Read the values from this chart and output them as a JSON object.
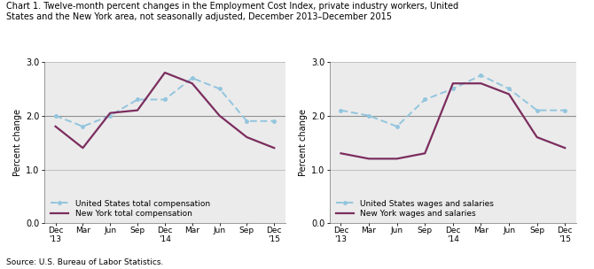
{
  "title_line1": "Chart 1. Twelve-month percent changes in the Employment Cost Index, private industry workers, United",
  "title_line2": "States and the New York area, not seasonally adjusted, December 2013–December 2015",
  "source": "Source: U.S. Bureau of Labor Statistics.",
  "x_labels": [
    "Dec\n'13",
    "Mar",
    "Jun",
    "Sep",
    "Dec\n'14",
    "Mar",
    "Jun",
    "Sep",
    "Dec\n'15"
  ],
  "chart1": {
    "us_total": [
      2.0,
      1.8,
      2.0,
      2.3,
      2.3,
      2.7,
      2.5,
      1.9,
      1.9
    ],
    "ny_total": [
      1.8,
      1.4,
      2.05,
      2.1,
      2.8,
      2.6,
      2.0,
      1.6,
      1.4
    ],
    "ylabel": "Percent change",
    "legend1": "United States total compensation",
    "legend2": "New York total compensation"
  },
  "chart2": {
    "us_wages": [
      2.1,
      2.0,
      1.8,
      2.3,
      2.5,
      2.75,
      2.5,
      2.1,
      2.1
    ],
    "ny_wages": [
      1.3,
      1.2,
      1.2,
      1.3,
      2.6,
      2.6,
      2.4,
      1.6,
      1.4
    ],
    "ylabel": "Percent change",
    "legend1": "United States wages and salaries",
    "legend2": "New York wages and salaries"
  },
  "ylim": [
    0.0,
    3.0
  ],
  "yticks": [
    0.0,
    1.0,
    2.0,
    3.0
  ],
  "ref_line": 2.0,
  "color_us": "#92C5DE",
  "color_ny": "#7B2D5E",
  "color_refline": "#909090",
  "color_hline": "#C0C0C0",
  "bg_color": "#EBEBEB"
}
